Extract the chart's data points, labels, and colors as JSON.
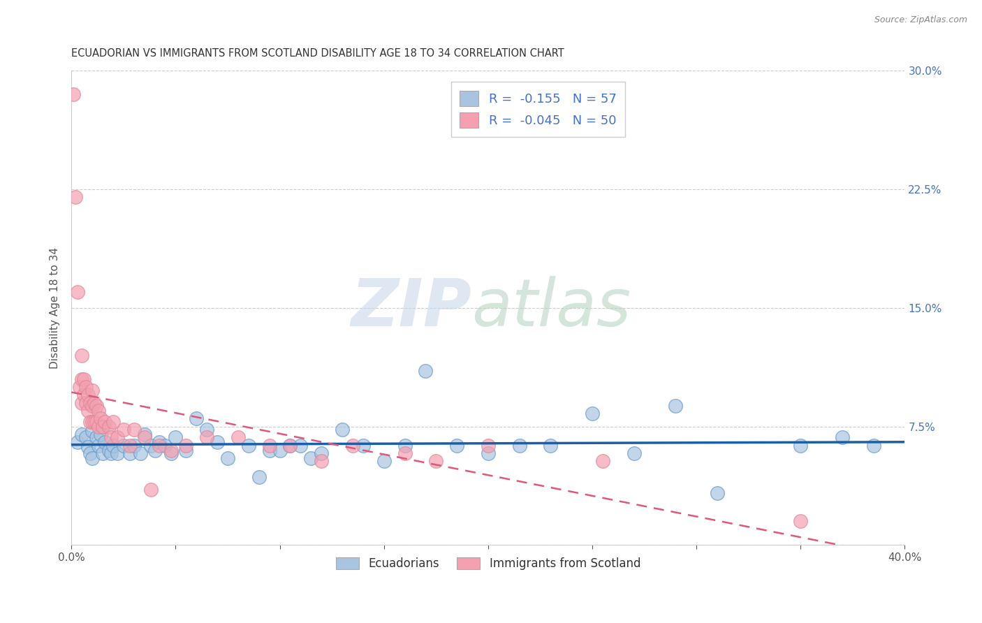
{
  "title": "ECUADORIAN VS IMMIGRANTS FROM SCOTLAND DISABILITY AGE 18 TO 34 CORRELATION CHART",
  "source": "Source: ZipAtlas.com",
  "ylabel": "Disability Age 18 to 34",
  "xlim": [
    0.0,
    0.4
  ],
  "ylim": [
    0.0,
    0.3
  ],
  "xticks": [
    0.0,
    0.05,
    0.1,
    0.15,
    0.2,
    0.25,
    0.3,
    0.35,
    0.4
  ],
  "yticks_right": [
    0.0,
    0.075,
    0.15,
    0.225,
    0.3
  ],
  "yticklabels_right": [
    "",
    "7.5%",
    "15.0%",
    "22.5%",
    "30.0%"
  ],
  "blue_R": -0.155,
  "blue_N": 57,
  "pink_R": -0.045,
  "pink_N": 50,
  "blue_color": "#a8c4e0",
  "pink_color": "#f4a0b0",
  "blue_edge_color": "#6699cc",
  "pink_edge_color": "#dd8899",
  "blue_line_color": "#1a5fa8",
  "pink_line_color": "#e05878",
  "legend_label_blue": "Ecuadorians",
  "legend_label_pink": "Immigrants from Scotland",
  "blue_scatter_x": [
    0.003,
    0.005,
    0.007,
    0.008,
    0.009,
    0.01,
    0.01,
    0.012,
    0.013,
    0.014,
    0.015,
    0.015,
    0.016,
    0.018,
    0.019,
    0.02,
    0.022,
    0.025,
    0.028,
    0.03,
    0.033,
    0.035,
    0.038,
    0.04,
    0.042,
    0.045,
    0.048,
    0.05,
    0.055,
    0.06,
    0.065,
    0.07,
    0.075,
    0.085,
    0.09,
    0.095,
    0.1,
    0.105,
    0.11,
    0.115,
    0.12,
    0.13,
    0.14,
    0.15,
    0.16,
    0.17,
    0.185,
    0.2,
    0.215,
    0.23,
    0.25,
    0.27,
    0.29,
    0.31,
    0.35,
    0.37,
    0.385
  ],
  "blue_scatter_y": [
    0.065,
    0.07,
    0.068,
    0.062,
    0.058,
    0.072,
    0.055,
    0.068,
    0.063,
    0.07,
    0.075,
    0.058,
    0.065,
    0.06,
    0.058,
    0.063,
    0.058,
    0.063,
    0.058,
    0.063,
    0.058,
    0.07,
    0.063,
    0.06,
    0.065,
    0.063,
    0.058,
    0.068,
    0.06,
    0.08,
    0.073,
    0.065,
    0.055,
    0.063,
    0.043,
    0.06,
    0.06,
    0.063,
    0.063,
    0.055,
    0.058,
    0.073,
    0.063,
    0.053,
    0.063,
    0.11,
    0.063,
    0.058,
    0.063,
    0.063,
    0.083,
    0.058,
    0.088,
    0.033,
    0.063,
    0.068,
    0.063
  ],
  "pink_scatter_x": [
    0.001,
    0.002,
    0.003,
    0.004,
    0.005,
    0.005,
    0.005,
    0.006,
    0.006,
    0.007,
    0.007,
    0.008,
    0.008,
    0.009,
    0.009,
    0.01,
    0.01,
    0.01,
    0.011,
    0.011,
    0.012,
    0.012,
    0.013,
    0.013,
    0.014,
    0.015,
    0.016,
    0.018,
    0.019,
    0.02,
    0.022,
    0.025,
    0.028,
    0.03,
    0.035,
    0.038,
    0.042,
    0.048,
    0.055,
    0.065,
    0.08,
    0.095,
    0.105,
    0.12,
    0.135,
    0.16,
    0.175,
    0.2,
    0.255,
    0.35
  ],
  "pink_scatter_y": [
    0.285,
    0.22,
    0.16,
    0.1,
    0.12,
    0.105,
    0.09,
    0.105,
    0.095,
    0.1,
    0.09,
    0.095,
    0.085,
    0.09,
    0.078,
    0.098,
    0.088,
    0.078,
    0.09,
    0.078,
    0.088,
    0.078,
    0.085,
    0.075,
    0.08,
    0.075,
    0.078,
    0.075,
    0.068,
    0.078,
    0.068,
    0.073,
    0.063,
    0.073,
    0.068,
    0.035,
    0.063,
    0.06,
    0.063,
    0.068,
    0.068,
    0.063,
    0.063,
    0.053,
    0.063,
    0.058,
    0.053,
    0.063,
    0.053,
    0.015
  ]
}
